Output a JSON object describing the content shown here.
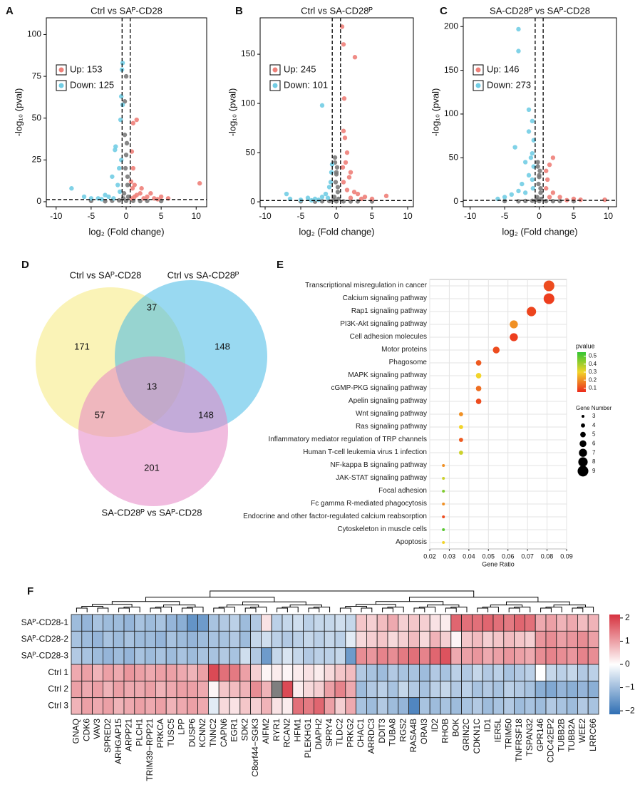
{
  "chart_data": [
    {
      "type": "scatter",
      "label": "A",
      "title": "Ctrl vs SAᴾ-CD28",
      "xlabel": "log₂ (Fold change)",
      "ylabel": "-log₁₀ (pval)",
      "xlim": [
        -11.4,
        11.5
      ],
      "ylim": [
        -3,
        110
      ],
      "xticks": [
        -10,
        -5,
        0,
        5,
        10
      ],
      "yticks": [
        0,
        25,
        50,
        75,
        100
      ],
      "x_cutoffs": [
        -0.58,
        0.58
      ],
      "y_cutoff": 1.3,
      "series": [
        {
          "name": "Up: 153",
          "color": "#ee8079",
          "x": [
            10.5,
            1.5,
            1.0,
            0.8,
            1.0,
            1.2,
            2.0,
            3.0,
            4.0,
            5.0,
            6.0,
            1.5,
            2.5,
            0.7,
            0.9,
            3.5,
            1.2,
            0.8,
            4.5,
            2.2
          ],
          "values": [
            11,
            49,
            47,
            30,
            20,
            10,
            5,
            3,
            2,
            3,
            2,
            4,
            2,
            12,
            8,
            5,
            3,
            2,
            1.5,
            8
          ]
        },
        {
          "name": "Down: 125",
          "color": "#72cde4",
          "x": [
            -0.5,
            -0.6,
            -0.7,
            -0.5,
            -0.8,
            -1.5,
            -1.6,
            -1.0,
            -2.0,
            -1.2,
            -5.0,
            -7.8,
            -6.0,
            -4.0,
            -3.0,
            -2.5,
            -0.9,
            -1.8,
            -3.5,
            -0.7
          ],
          "values": [
            83,
            79,
            63,
            58,
            49,
            33,
            31,
            20,
            15,
            10,
            2,
            8,
            3,
            2,
            4,
            3,
            6,
            2,
            1.5,
            25
          ]
        },
        {
          "color": "#7a7a7a",
          "x": [
            0,
            -0.3,
            0.2,
            -0.1,
            0.1,
            -0.2,
            0,
            0.3,
            -0.4,
            1,
            -1,
            2,
            -2,
            -3,
            3,
            0,
            -0.2,
            0.2,
            -5,
            5
          ],
          "values": [
            0.5,
            5,
            10,
            20,
            35,
            60,
            75,
            3,
            2,
            0.5,
            0.8,
            0.4,
            0.6,
            0.3,
            0.5,
            28,
            40,
            15,
            0.5,
            0.4
          ]
        }
      ]
    },
    {
      "type": "scatter",
      "label": "B",
      "title": "Ctrl vs SA-CD28ᴾ",
      "xlabel": "log₂ (Fold change)",
      "ylabel": "-log₁₀ (pval)",
      "xlim": [
        -10.7,
        10.8
      ],
      "ylim": [
        -5,
        187
      ],
      "xticks": [
        -10,
        -5,
        0,
        5,
        10
      ],
      "yticks": [
        0,
        50,
        100,
        150
      ],
      "x_cutoffs": [
        -0.58,
        0.58
      ],
      "y_cutoff": 1.3,
      "series": [
        {
          "name": "Up: 245",
          "color": "#ee8079",
          "x": [
            0.8,
            2.6,
            1.0,
            1.1,
            1.0,
            1.2,
            1.5,
            1.3,
            2.0,
            1.0,
            2.5,
            3.0,
            4.0,
            7.0,
            5.0,
            1.5,
            3.5,
            2.0,
            0.9,
            1.8
          ],
          "values": [
            178,
            147,
            160,
            105,
            72,
            65,
            50,
            40,
            30,
            20,
            10,
            8,
            5,
            6,
            3,
            12,
            3,
            4,
            35,
            25
          ]
        },
        {
          "name": "Down: 101",
          "color": "#72cde4",
          "x": [
            -2.0,
            -7.0,
            -6.5,
            -5.0,
            -4.0,
            -3.0,
            -0.6,
            -0.7,
            -1.0,
            -2.0,
            -1.5,
            -0.8,
            -2.5,
            -3.5,
            -1.2
          ],
          "values": [
            98,
            8,
            3,
            2,
            4,
            3,
            38,
            30,
            15,
            5,
            8,
            20,
            2,
            1.5,
            4
          ]
        },
        {
          "color": "#7a7a7a",
          "x": [
            0,
            -0.3,
            0.2,
            -0.1,
            0.1,
            -0.2,
            0,
            0.3,
            -0.4,
            1,
            -1,
            2,
            -2,
            -3,
            3,
            0,
            -0.2,
            0.2,
            -5,
            5
          ],
          "values": [
            0.5,
            5,
            10,
            20,
            35,
            45,
            30,
            3,
            2,
            0.5,
            0.8,
            0.4,
            0.6,
            0.3,
            0.5,
            28,
            40,
            15,
            0.5,
            0.4
          ]
        }
      ]
    },
    {
      "type": "scatter",
      "label": "C",
      "title": "SA-CD28ᴾ vs SAᴾ-CD28",
      "xlabel": "log₂ (Fold change)",
      "ylabel": "-log₁₀ (pval)",
      "xlim": [
        -11,
        11.2
      ],
      "ylim": [
        -6,
        210
      ],
      "xticks": [
        -10,
        -5,
        0,
        5,
        10
      ],
      "yticks": [
        0,
        50,
        100,
        150,
        200
      ],
      "x_cutoffs": [
        -0.58,
        0.58
      ],
      "y_cutoff": 1.3,
      "series": [
        {
          "name": "Up: 146",
          "color": "#ee8079",
          "x": [
            2.0,
            1.5,
            1.0,
            1.2,
            1.0,
            2.0,
            3.0,
            5.0,
            6.0,
            9.5,
            4.0,
            1.5
          ],
          "values": [
            50,
            42,
            35,
            25,
            15,
            10,
            5,
            3,
            2,
            2,
            1.5,
            5
          ]
        },
        {
          "name": "Down: 273",
          "color": "#72cde4",
          "x": [
            -3.0,
            -3.0,
            -1.5,
            -1.0,
            -1.5,
            -0.8,
            -3.5,
            -1.0,
            -2.0,
            -0.8,
            -1.5,
            -1.0,
            -2.5,
            -3.0,
            -4.0,
            -5.0,
            -6.0,
            -2.0,
            -0.9,
            -1.2
          ],
          "values": [
            197,
            172,
            105,
            92,
            80,
            70,
            62,
            55,
            45,
            40,
            30,
            25,
            20,
            12,
            8,
            5,
            3,
            10,
            15,
            50
          ]
        },
        {
          "color": "#7a7a7a",
          "x": [
            0,
            -0.3,
            0.2,
            -0.1,
            0.1,
            -0.2,
            0,
            0.3,
            -0.4,
            1,
            -1,
            2,
            -2,
            -3,
            3,
            0,
            -0.2,
            0.2,
            -5,
            5
          ],
          "values": [
            0.5,
            5,
            10,
            20,
            35,
            45,
            30,
            3,
            2,
            0.5,
            0.8,
            0.4,
            0.6,
            0.3,
            0.5,
            28,
            40,
            15,
            0.5,
            0.4
          ]
        }
      ]
    },
    {
      "type": "venn",
      "label": "D",
      "sets": [
        {
          "name": "Ctrl vs SAᴾ-CD28",
          "color": "#f6ea7c"
        },
        {
          "name": "Ctrl vs SA-CD28ᴾ",
          "color": "#45b9e6"
        },
        {
          "name": "SA-CD28ᴾ vs SAᴾ-CD28",
          "color": "#e585c4"
        }
      ],
      "values": [
        171,
        37,
        148,
        13,
        57,
        148,
        201
      ]
    },
    {
      "type": "dot",
      "label": "E",
      "xlabel": "Gene Ratio",
      "xlim": [
        0.02,
        0.09
      ],
      "xticks": [
        0.02,
        0.03,
        0.04,
        0.05,
        0.06,
        0.07,
        0.08,
        0.09
      ],
      "grid": true,
      "categories": [
        "Transcriptional misregulation in cancer",
        "Calcium signaling pathway",
        "Rap1 signaling pathway",
        "PI3K-Akt signaling pathway",
        "Cell adhesion molecules",
        "Motor proteins",
        "Phagosome",
        "MAPK signaling pathway",
        "cGMP-PKG signaling pathway",
        "Apelin signaling pathway",
        "Wnt signaling pathway",
        "Ras signaling pathway",
        "Inflammatory mediator regulation of TRP channels",
        "Human T-cell leukemia virus 1 infection",
        "NF-kappa B signaling pathway",
        "JAK-STAT signaling pathway",
        "Focal adhesion",
        "Fc gamma R-mediated phagocytosis",
        "Endocrine and other factor-regulated calcium reabsorption",
        "Cytoskeleton in muscle cells",
        "Apoptosis"
      ],
      "values": [
        0.081,
        0.081,
        0.072,
        0.063,
        0.063,
        0.054,
        0.045,
        0.045,
        0.045,
        0.045,
        0.036,
        0.036,
        0.036,
        0.036,
        0.027,
        0.027,
        0.027,
        0.027,
        0.027,
        0.027,
        0.027
      ],
      "pvalue": [
        0.1,
        0.08,
        0.09,
        0.2,
        0.08,
        0.1,
        0.12,
        0.3,
        0.15,
        0.1,
        0.2,
        0.3,
        0.12,
        0.35,
        0.2,
        0.35,
        0.45,
        0.2,
        0.1,
        0.5,
        0.3
      ],
      "gene_number": [
        9,
        9,
        8,
        7,
        7,
        6,
        5,
        5,
        5,
        5,
        4,
        4,
        4,
        4,
        3,
        3,
        3,
        3,
        3,
        3,
        3
      ],
      "color_title": "pvalue",
      "clim": [
        0.05,
        0.55
      ],
      "color_ticks": [
        0.1,
        0.2,
        0.3,
        0.4,
        0.5
      ],
      "colors": [
        "#ec2a1c",
        "#f2d42a",
        "#33c532"
      ],
      "size_title": "Gene Number",
      "size_legend": [
        3,
        4,
        5,
        6,
        7,
        8,
        9
      ]
    },
    {
      "type": "heatmap",
      "label": "F",
      "rows": [
        "SAᴾ-CD28-1",
        "SAᴾ-CD28-2",
        "SAᴾ-CD28-3",
        "Ctrl 1",
        "Ctrl 2",
        "Ctrl 3"
      ],
      "columns": [
        "GNAQ",
        "CDK6",
        "VAV3",
        "SPRED2",
        "ARHGAP15",
        "ARPP21",
        "PLCH1",
        "TRIM39−RPP21",
        "PRKCA",
        "TUSC5",
        "LPP",
        "DUSP6",
        "KCNN2",
        "TNNC2",
        "CAPN6",
        "EGR1",
        "SDK2",
        "C8orf44−SGK3",
        "AIFM2",
        "RYR1",
        "RCAN2",
        "HFM1",
        "PLEKHG1",
        "DIAPH2",
        "SPRY4",
        "TLDC2",
        "PRKG2",
        "CHAC1",
        "ARRDC3",
        "DDIT3",
        "TUBA8",
        "RGS2",
        "RASA4B",
        "ORAI3",
        "ID2",
        "RHOB",
        "BOK",
        "GRIN2C",
        "CDKN1C",
        "ID1",
        "IER5L",
        "TRIM50",
        "TNFRSF18",
        "TSPAN32",
        "GPR146",
        "CDC42EP2",
        "TUBB2B",
        "TUBB2A",
        "WEE2",
        "LRRC66"
      ],
      "values": [
        [
          -1.0,
          -1.1,
          -0.9,
          -1.0,
          -1.0,
          -1.1,
          -0.9,
          -1.0,
          -0.9,
          -1.1,
          -1.2,
          -1.6,
          -1.5,
          -0.9,
          -0.8,
          -0.7,
          -1.0,
          -0.8,
          0.3,
          -0.7,
          -0.6,
          -0.5,
          -0.7,
          -0.6,
          -0.6,
          -0.5,
          -0.6,
          0.6,
          0.5,
          0.7,
          0.9,
          0.5,
          0.6,
          0.5,
          0.3,
          0.2,
          1.6,
          1.5,
          1.5,
          1.6,
          1.5,
          1.4,
          1.6,
          1.5,
          0.9,
          1.0,
          0.8,
          0.9,
          0.7,
          0.8
        ],
        [
          -0.9,
          -1.0,
          -1.1,
          -0.9,
          -1.0,
          -0.9,
          -1.0,
          -1.0,
          -1.1,
          -0.9,
          -1.0,
          -1.1,
          -1.0,
          -0.9,
          -0.9,
          -0.8,
          -1.0,
          -0.6,
          -0.5,
          -0.7,
          -0.8,
          -0.7,
          -0.6,
          -0.7,
          -0.6,
          -0.7,
          -0.3,
          0.4,
          0.5,
          0.6,
          0.4,
          0.5,
          0.7,
          0.4,
          0.8,
          0.5,
          0.1,
          0.6,
          0.7,
          0.5,
          0.6,
          0.7,
          0.6,
          0.5,
          1.1,
          1.2,
          1.0,
          1.1,
          1.2,
          1.0
        ],
        [
          -0.8,
          -0.9,
          -1.0,
          -1.1,
          -1.0,
          -1.1,
          -0.9,
          -1.0,
          -0.9,
          -1.0,
          -0.9,
          -1.0,
          -0.9,
          -0.9,
          -0.8,
          -0.9,
          -0.5,
          -0.8,
          -1.5,
          -0.6,
          -0.4,
          -0.6,
          -0.8,
          -0.7,
          -0.7,
          -0.6,
          -1.5,
          1.2,
          1.1,
          1.3,
          1.2,
          1.4,
          1.5,
          1.3,
          1.6,
          1.8,
          0.9,
          1.0,
          1.1,
          0.9,
          1.0,
          1.1,
          1.0,
          0.9,
          1.2,
          1.3,
          1.2,
          1.1,
          1.3,
          1.2
        ],
        [
          0.9,
          1.0,
          0.8,
          1.0,
          0.9,
          1.1,
          1.0,
          0.9,
          1.0,
          1.0,
          0.9,
          0.8,
          1.0,
          1.9,
          1.5,
          1.4,
          1.0,
          0.5,
          0.1,
          0.2,
          0.1,
          0.2,
          0.3,
          0.2,
          0.4,
          0.6,
          0.7,
          -0.8,
          -0.9,
          -1.0,
          -0.8,
          -0.9,
          -0.9,
          -1.0,
          -0.8,
          -0.9,
          -0.7,
          -0.8,
          -0.6,
          -0.8,
          -0.7,
          -0.9,
          -0.8,
          -0.7,
          0.0,
          -0.6,
          -0.7,
          -0.6,
          -0.8,
          -0.7
        ],
        [
          1.0,
          0.9,
          1.0,
          0.8,
          1.0,
          0.9,
          0.9,
          1.0,
          0.8,
          0.9,
          1.0,
          1.0,
          0.9,
          0.1,
          0.6,
          0.7,
          0.8,
          1.2,
          0.8,
          null,
          1.9,
          0.2,
          0.4,
          0.5,
          1.0,
          1.3,
          0.9,
          -1.0,
          -0.8,
          -0.7,
          -0.9,
          -0.6,
          -0.8,
          -0.9,
          -0.7,
          -0.6,
          -0.8,
          -0.7,
          -0.9,
          -0.8,
          -0.9,
          -0.7,
          -0.8,
          -0.9,
          -1.2,
          -1.3,
          -1.1,
          -1.2,
          -1.1,
          -1.2
        ],
        [
          0.8,
          1.0,
          0.9,
          1.0,
          0.8,
          0.9,
          1.0,
          0.9,
          1.0,
          0.8,
          0.9,
          1.0,
          0.9,
          -0.3,
          0.4,
          0.3,
          0.6,
          0.5,
          0.8,
          0.3,
          0.2,
          1.5,
          1.4,
          1.6,
          1.0,
          0.5,
          0.9,
          -0.9,
          -1.0,
          -0.8,
          -1.0,
          -1.1,
          -1.8,
          -0.9,
          -1.0,
          -0.9,
          -1.0,
          -0.9,
          -0.8,
          -1.0,
          -0.9,
          -0.8,
          -1.0,
          -0.9,
          -1.0,
          -0.8,
          -0.9,
          -1.0,
          -0.8,
          -0.9
        ]
      ],
      "clim": [
        -2.15,
        2.15
      ],
      "colors": [
        "#2f6fb4",
        "#ffffff",
        "#d6323f"
      ],
      "na_color": "#7f7f7f",
      "color_ticks": [
        2,
        1,
        0,
        {
          "value": -1,
          "label": "−1"
        },
        {
          "value": -2,
          "label": "−2"
        }
      ]
    }
  ]
}
